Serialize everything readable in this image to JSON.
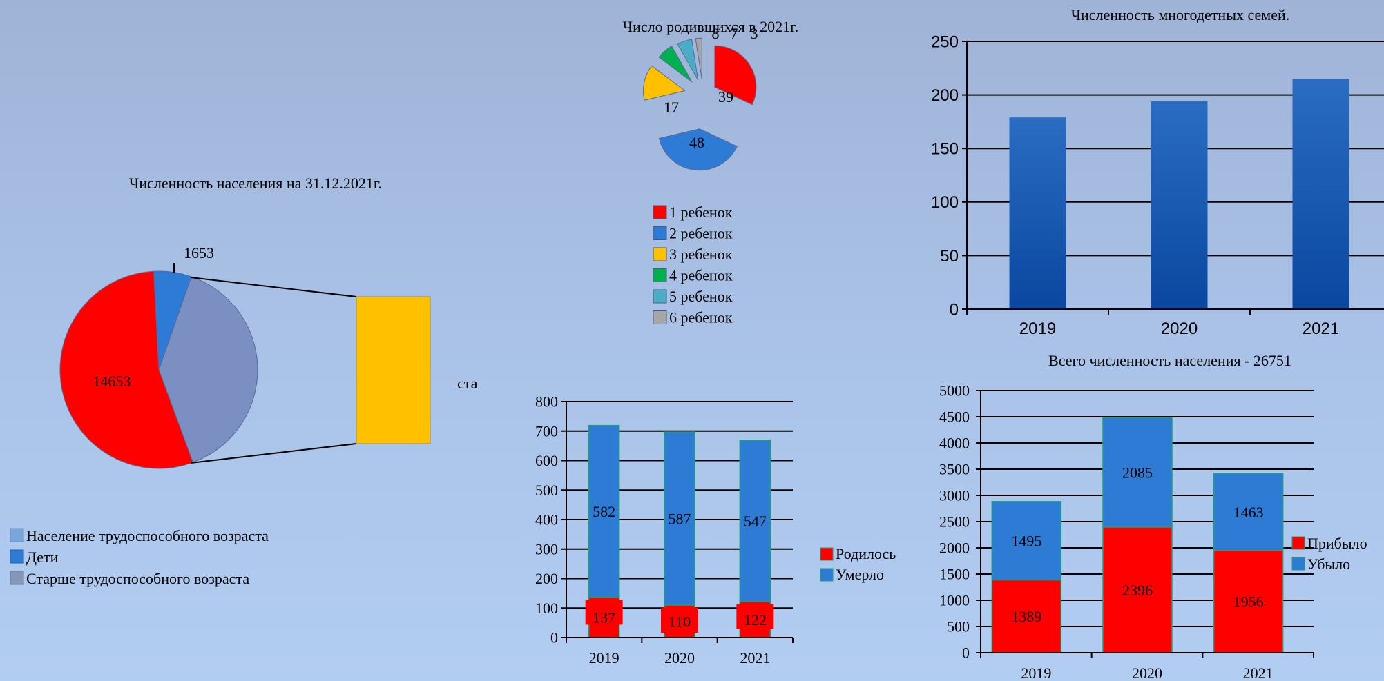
{
  "chart_data": [
    {
      "id": "population",
      "type": "pie",
      "title": "Численность населения на 31.12.2021г.",
      "slices": [
        {
          "name": "Население трудоспособного возраста",
          "value": 14653,
          "label": "14653",
          "color": "#ff0000"
        },
        {
          "name": "Дети",
          "value": 1653,
          "label": "1653",
          "color": "#2e7bd6"
        },
        {
          "name": "Старше трудоспособного возраста",
          "value": 10445,
          "label": "",
          "color": "#7b8fc2"
        }
      ],
      "breakout_label": "ста",
      "breakout_color": "#ffc000",
      "legend": [
        {
          "label": "Население трудоспособного возраста",
          "color": "#79a7db"
        },
        {
          "label": "Дети",
          "color": "#2e7bd6"
        },
        {
          "label": "Старше трудоспособного возраста",
          "color": "#8497b8"
        }
      ]
    },
    {
      "id": "births",
      "type": "pie",
      "title": "Число родившихся в 2021г.",
      "slices": [
        {
          "name": "1 ребенок",
          "value": 39,
          "label": "39",
          "color": "#ff0000"
        },
        {
          "name": "2 ребенок",
          "value": 48,
          "label": "48",
          "color": "#2e7bd6"
        },
        {
          "name": "3 ребенок",
          "value": 17,
          "label": "17",
          "color": "#ffc000"
        },
        {
          "name": "4 ребенок",
          "value": 8,
          "label": "8",
          "color": "#00b050"
        },
        {
          "name": "5 ребенок",
          "value": 7,
          "label": "7",
          "color": "#4bacc6"
        },
        {
          "name": "6 ребенок",
          "value": 3,
          "label": "3",
          "color": "#a6a6a6"
        }
      ],
      "legend_placement": "bottom"
    },
    {
      "id": "large_families",
      "type": "bar",
      "title": "Численность многодетных семей.",
      "categories": [
        "2019",
        "2020",
        "2021"
      ],
      "values": [
        179,
        194,
        215
      ],
      "ylim": [
        0,
        250
      ],
      "yticks": [
        0,
        50,
        100,
        150,
        200,
        250
      ],
      "color": "#1d5fb0",
      "grid": true
    },
    {
      "id": "births_deaths",
      "type": "bar",
      "stacked": true,
      "categories": [
        "2019",
        "2020",
        "2021"
      ],
      "series": [
        {
          "name": "Родилось",
          "values": [
            137,
            110,
            122
          ],
          "color": "#ff0000"
        },
        {
          "name": "Умерло",
          "values": [
            582,
            587,
            547
          ],
          "color": "#2e7bd6"
        }
      ],
      "ylim": [
        0,
        800
      ],
      "yticks": [
        0,
        100,
        200,
        300,
        400,
        500,
        600,
        700,
        800
      ],
      "legend_placement": "right",
      "grid": true
    },
    {
      "id": "migration",
      "type": "bar",
      "stacked": true,
      "title": "Всего численность населения - 26751",
      "categories": [
        "2019",
        "2020",
        "2021"
      ],
      "series": [
        {
          "name": "Прибыло",
          "values": [
            1389,
            2396,
            1956
          ],
          "color": "#ff0000"
        },
        {
          "name": "Убыло",
          "values": [
            1495,
            2085,
            1463
          ],
          "color": "#2e7bd6"
        }
      ],
      "ylim": [
        0,
        5000
      ],
      "yticks": [
        0,
        500,
        1000,
        1500,
        2000,
        2500,
        3000,
        3500,
        4000,
        4500,
        5000
      ],
      "legend_placement": "right",
      "grid": true
    }
  ]
}
